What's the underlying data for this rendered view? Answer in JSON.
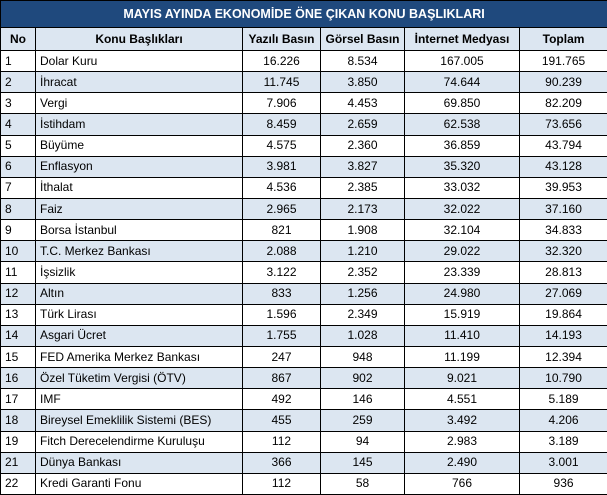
{
  "title": "MAYIS AYINDA EKONOMİDE ÖNE ÇIKAN KONU BAŞLIKLARI",
  "columns": [
    "No",
    "Konu Başlıkları",
    "Yazılı Basın",
    "Görsel Basın",
    "İnternet Medyası",
    "Toplam"
  ],
  "rows": [
    [
      "1",
      "Dolar Kuru",
      "16.226",
      "8.534",
      "167.005",
      "191.765"
    ],
    [
      "2",
      "İhracat",
      "11.745",
      "3.850",
      "74.644",
      "90.239"
    ],
    [
      "3",
      "Vergi",
      "7.906",
      "4.453",
      "69.850",
      "82.209"
    ],
    [
      "4",
      "İstihdam",
      "8.459",
      "2.659",
      "62.538",
      "73.656"
    ],
    [
      "5",
      "Büyüme",
      "4.575",
      "2.360",
      "36.859",
      "43.794"
    ],
    [
      "6",
      "Enflasyon",
      "3.981",
      "3.827",
      "35.320",
      "43.128"
    ],
    [
      "7",
      "İthalat",
      "4.536",
      "2.385",
      "33.032",
      "39.953"
    ],
    [
      "8",
      "Faiz",
      "2.965",
      "2.173",
      "32.022",
      "37.160"
    ],
    [
      "9",
      "Borsa İstanbul",
      "821",
      "1.908",
      "32.104",
      "34.833"
    ],
    [
      "10",
      "T.C. Merkez Bankası",
      "2.088",
      "1.210",
      "29.022",
      "32.320"
    ],
    [
      "11",
      "İşsizlik",
      "3.122",
      "2.352",
      "23.339",
      "28.813"
    ],
    [
      "12",
      "Altın",
      "833",
      "1.256",
      "24.980",
      "27.069"
    ],
    [
      "13",
      "Türk Lirası",
      "1.596",
      "2.349",
      "15.919",
      "19.864"
    ],
    [
      "14",
      "Asgari Ücret",
      "1.755",
      "1.028",
      "11.410",
      "14.193"
    ],
    [
      "15",
      "FED Amerika Merkez Bankası",
      "247",
      "948",
      "11.199",
      "12.394"
    ],
    [
      "16",
      "Özel Tüketim Vergisi (ÖTV)",
      "867",
      "902",
      "9.021",
      "10.790"
    ],
    [
      "17",
      "IMF",
      "492",
      "146",
      "4.551",
      "5.189"
    ],
    [
      "18",
      "Bireysel Emeklilik Sistemi (BES)",
      "455",
      "259",
      "3.492",
      "4.206"
    ],
    [
      "19",
      "Fitch Derecelendirme Kuruluşu",
      "112",
      "94",
      "2.983",
      "3.189"
    ],
    [
      "21",
      "Dünya Bankası",
      "366",
      "145",
      "2.490",
      "3.001"
    ],
    [
      "22",
      "Kredi Garanti Fonu",
      "112",
      "58",
      "766",
      "936"
    ]
  ],
  "colors": {
    "title_bg": "#1f497d",
    "title_text": "#ffffff",
    "header_bg": "#dce6f1",
    "alt_row_bg": "#dce6f1",
    "row_bg": "#ffffff"
  }
}
